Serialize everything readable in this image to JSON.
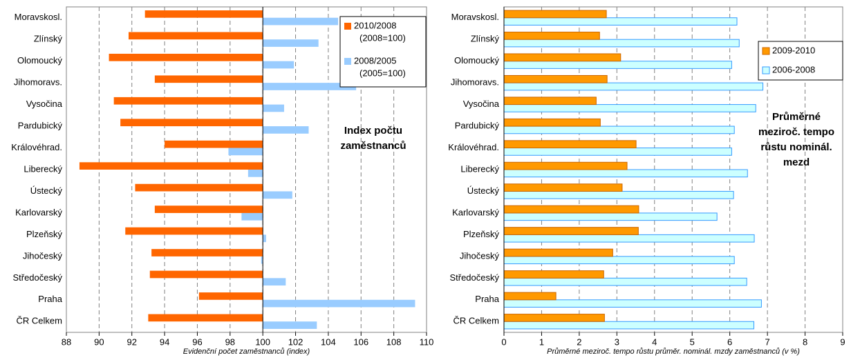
{
  "chart_data": [
    {
      "type": "bar",
      "orientation": "horizontal",
      "categories": [
        "Moravskosl.",
        "Zlínský",
        "Olomoucký",
        "Jihomoravs.",
        "Vysočina",
        "Pardubický",
        "Královéhrad.",
        "Liberecký",
        "Ústecký",
        "Karlovarský",
        "Plzeňský",
        "Jihočeský",
        "Středočeský",
        "Praha",
        "ČR Celkem"
      ],
      "series": [
        {
          "name": "2010/2008 (2008=100)",
          "color": "#ff6600",
          "values": [
            92.8,
            91.8,
            90.6,
            93.4,
            90.9,
            91.3,
            94.0,
            88.8,
            92.2,
            93.4,
            91.6,
            93.2,
            93.1,
            96.1,
            93.0
          ]
        },
        {
          "name": "2008/2005 (2005=100)",
          "color": "#99ccff",
          "values": [
            104.6,
            103.4,
            101.9,
            105.7,
            101.3,
            102.8,
            97.9,
            99.1,
            101.8,
            98.7,
            100.2,
            99.9,
            101.4,
            109.3,
            103.3
          ]
        }
      ],
      "xlim": [
        88,
        110
      ],
      "xticks": [
        88,
        90,
        92,
        94,
        96,
        98,
        100,
        102,
        104,
        106,
        108,
        110
      ],
      "base": 100,
      "xlabel": "Evidenční počet zaměstnanců (index)",
      "annotation": "Index počtu zaměstnanců",
      "grid": true,
      "legend": "top-right"
    },
    {
      "type": "bar",
      "orientation": "horizontal",
      "categories": [
        "Moravskosl.",
        "Zlínský",
        "Olomoucký",
        "Jihomoravs.",
        "Vysočina",
        "Pardubický",
        "Královéhrad.",
        "Liberecký",
        "Ústecký",
        "Karlovarský",
        "Plzeňský",
        "Jihočeský",
        "Středočeský",
        "Praha",
        "ČR Celkem"
      ],
      "series": [
        {
          "name": "2009-2010",
          "color": "#ff9900",
          "values": [
            2.72,
            2.54,
            3.1,
            2.74,
            2.45,
            2.56,
            3.51,
            3.27,
            3.14,
            3.58,
            3.57,
            2.89,
            2.65,
            1.38,
            2.67
          ]
        },
        {
          "name": "2006-2008",
          "color": "#ccffff",
          "values": [
            6.19,
            6.25,
            6.05,
            6.88,
            6.69,
            6.12,
            6.05,
            6.47,
            6.1,
            5.66,
            6.65,
            6.12,
            6.45,
            6.84,
            6.64
          ]
        }
      ],
      "xlim": [
        0,
        9
      ],
      "xticks": [
        0,
        1,
        2,
        3,
        4,
        5,
        6,
        7,
        8,
        9
      ],
      "base": 0,
      "xlabel": "Průměrné meziroč. tempo růstu průměr. nominál. mzdy zaměstnanců (v %)",
      "annotation": "Průměrné meziroč. tempo růstu nominál. mezd",
      "grid": true,
      "legend": "top-right"
    }
  ]
}
